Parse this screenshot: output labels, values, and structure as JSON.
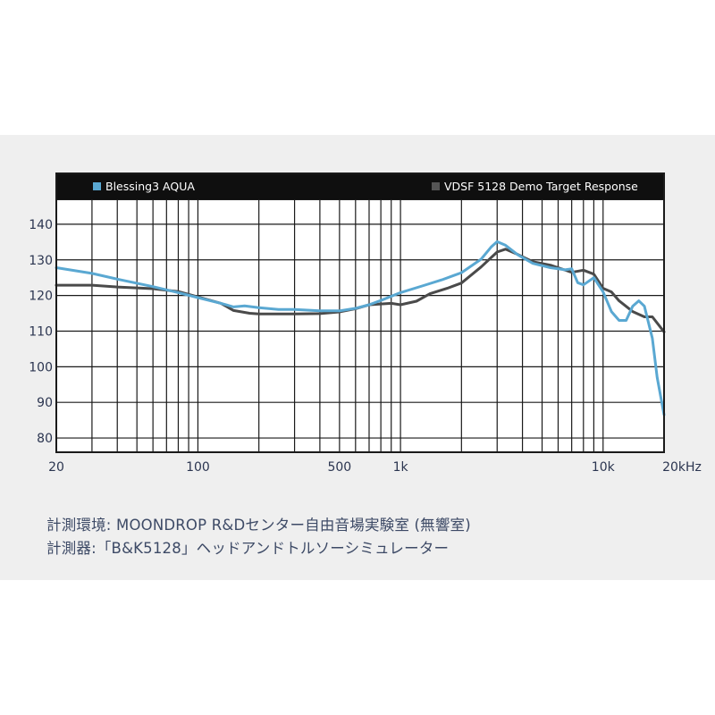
{
  "chart_data": {
    "type": "line",
    "title": "",
    "xlabel": "",
    "ylabel": "",
    "x_scale": "log",
    "xlim": [
      20,
      20000
    ],
    "ylim": [
      76,
      147
    ],
    "x_ticks": [
      {
        "value": 20,
        "label": "20"
      },
      {
        "value": 100,
        "label": "100"
      },
      {
        "value": 500,
        "label": "500"
      },
      {
        "value": 1000,
        "label": "1k"
      },
      {
        "value": 10000,
        "label": "10k"
      },
      {
        "value": 20000,
        "label": "20kHz"
      }
    ],
    "y_ticks": [
      {
        "value": 80,
        "label": "80"
      },
      {
        "value": 90,
        "label": "90"
      },
      {
        "value": 100,
        "label": "100"
      },
      {
        "value": 110,
        "label": "110"
      },
      {
        "value": 120,
        "label": "120"
      },
      {
        "value": 130,
        "label": "130"
      },
      {
        "value": 140,
        "label": "140"
      }
    ],
    "grid": true,
    "legend_position": "top",
    "series": [
      {
        "name": "Blessing3  AQUA",
        "color": "#5aa8d2",
        "points": [
          [
            20,
            127.8
          ],
          [
            30,
            126.2
          ],
          [
            40,
            124.6
          ],
          [
            60,
            122.5
          ],
          [
            80,
            120.8
          ],
          [
            100,
            119.4
          ],
          [
            130,
            117.8
          ],
          [
            150,
            116.8
          ],
          [
            170,
            117.1
          ],
          [
            200,
            116.6
          ],
          [
            250,
            116.1
          ],
          [
            300,
            116.1
          ],
          [
            400,
            115.7
          ],
          [
            500,
            115.7
          ],
          [
            600,
            116.4
          ],
          [
            700,
            117.4
          ],
          [
            800,
            118.6
          ],
          [
            1000,
            120.8
          ],
          [
            1300,
            122.8
          ],
          [
            1600,
            124.4
          ],
          [
            2000,
            126.4
          ],
          [
            2500,
            130.2
          ],
          [
            2800,
            133.6
          ],
          [
            3000,
            135.1
          ],
          [
            3300,
            134.1
          ],
          [
            3800,
            131.4
          ],
          [
            4500,
            129.0
          ],
          [
            5500,
            127.8
          ],
          [
            6500,
            127.2
          ],
          [
            7000,
            127.5
          ],
          [
            7500,
            123.6
          ],
          [
            8000,
            123.0
          ],
          [
            9000,
            125.0
          ],
          [
            10000,
            121.0
          ],
          [
            11000,
            115.5
          ],
          [
            12000,
            113.0
          ],
          [
            13000,
            113.0
          ],
          [
            14000,
            117.0
          ],
          [
            15000,
            118.5
          ],
          [
            16000,
            117.0
          ],
          [
            17500,
            108.0
          ],
          [
            18500,
            97.0
          ],
          [
            20000,
            86.5
          ]
        ]
      },
      {
        "name": "VDSF 5128 Demo Target Response",
        "color": "#4a4a4a",
        "points": [
          [
            20,
            122.9
          ],
          [
            30,
            122.9
          ],
          [
            40,
            122.4
          ],
          [
            60,
            121.9
          ],
          [
            80,
            121.1
          ],
          [
            100,
            119.6
          ],
          [
            130,
            117.8
          ],
          [
            150,
            115.8
          ],
          [
            180,
            115.0
          ],
          [
            200,
            114.8
          ],
          [
            300,
            114.8
          ],
          [
            400,
            114.9
          ],
          [
            500,
            115.4
          ],
          [
            600,
            116.3
          ],
          [
            700,
            117.4
          ],
          [
            900,
            117.8
          ],
          [
            1000,
            117.4
          ],
          [
            1200,
            118.4
          ],
          [
            1400,
            120.5
          ],
          [
            1700,
            122.0
          ],
          [
            2000,
            123.5
          ],
          [
            2500,
            128.0
          ],
          [
            3000,
            132.2
          ],
          [
            3300,
            133.0
          ],
          [
            3800,
            131.5
          ],
          [
            4500,
            129.5
          ],
          [
            5500,
            128.5
          ],
          [
            7000,
            126.5
          ],
          [
            8000,
            127.1
          ],
          [
            9000,
            126.0
          ],
          [
            10000,
            122.0
          ],
          [
            11000,
            121.0
          ],
          [
            12000,
            118.5
          ],
          [
            14000,
            115.5
          ],
          [
            16000,
            114.0
          ],
          [
            17500,
            114.0
          ],
          [
            20000,
            109.8
          ]
        ]
      }
    ]
  },
  "captions": {
    "line1": "計測環境: MOONDROP R&Dセンター自由音場実験室 (無響室)",
    "line2": "計測器:「B&K5128」ヘッドアンドトルソーシミュレーター"
  }
}
